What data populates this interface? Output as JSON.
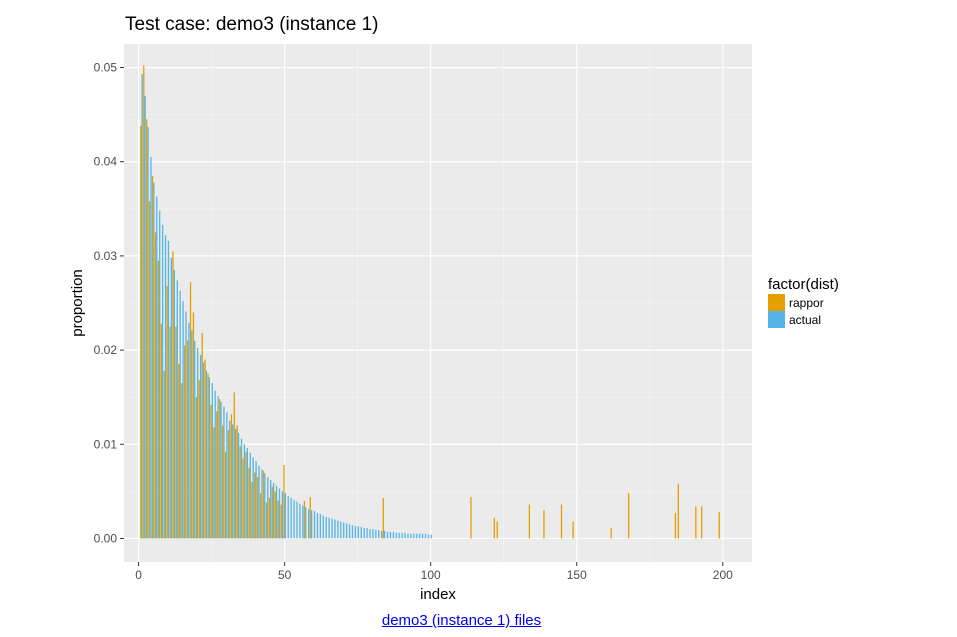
{
  "chart_data": {
    "type": "bar",
    "title": "Test case: demo3 (instance 1)",
    "xlabel": "index",
    "ylabel": "proportion",
    "xlim": [
      -5,
      210
    ],
    "ylim": [
      -0.0025,
      0.0525
    ],
    "x_ticks": [
      0,
      50,
      100,
      150,
      200
    ],
    "x_tick_labels": [
      "0",
      "50",
      "100",
      "150",
      "200"
    ],
    "y_ticks": [
      0.0,
      0.01,
      0.02,
      0.03,
      0.04,
      0.05
    ],
    "y_tick_labels": [
      "0.00",
      "0.01",
      "0.02",
      "0.03",
      "0.04",
      "0.05"
    ],
    "grid": true,
    "legend": {
      "title": "factor(dist)",
      "position": "right"
    },
    "series": [
      {
        "name": "rappor",
        "color": "#E69F00",
        "x": [
          1,
          2,
          3,
          4,
          5,
          6,
          7,
          8,
          9,
          10,
          11,
          12,
          13,
          14,
          15,
          16,
          17,
          18,
          19,
          20,
          21,
          22,
          23,
          24,
          25,
          26,
          27,
          28,
          29,
          30,
          31,
          32,
          33,
          34,
          35,
          36,
          37,
          38,
          39,
          40,
          41,
          42,
          43,
          44,
          45,
          46,
          47,
          48,
          49,
          50,
          57,
          59,
          84,
          114,
          122,
          123,
          134,
          139,
          145,
          149,
          162,
          168,
          184,
          185,
          191,
          193,
          199
        ],
        "values": [
          0.0438,
          0.0502,
          0.0445,
          0.0358,
          0.0385,
          0.0325,
          0.0295,
          0.0228,
          0.0178,
          0.0268,
          0.0225,
          0.0305,
          0.0225,
          0.0185,
          0.0165,
          0.0205,
          0.021,
          0.0272,
          0.024,
          0.015,
          0.0168,
          0.0218,
          0.019,
          0.0175,
          0.0142,
          0.0118,
          0.0135,
          0.0148,
          0.012,
          0.0092,
          0.0115,
          0.0132,
          0.0155,
          0.012,
          0.0098,
          0.0085,
          0.0092,
          0.0075,
          0.006,
          0.007,
          0.0065,
          0.0048,
          0.0072,
          0.0038,
          0.0043,
          0.0055,
          0.005,
          0.004,
          0.0036,
          0.0078,
          0.004,
          0.0044,
          0.0043,
          0.0044,
          0.0022,
          0.0018,
          0.0036,
          0.003,
          0.0036,
          0.0018,
          0.0011,
          0.0048,
          0.0027,
          0.0058,
          0.0034,
          0.0034,
          0.0028
        ]
      },
      {
        "name": "actual",
        "color": "#56B4E9",
        "x": [
          1,
          2,
          3,
          4,
          5,
          6,
          7,
          8,
          9,
          10,
          11,
          12,
          13,
          14,
          15,
          16,
          17,
          18,
          19,
          20,
          21,
          22,
          23,
          24,
          25,
          26,
          27,
          28,
          29,
          30,
          31,
          32,
          33,
          34,
          35,
          36,
          37,
          38,
          39,
          40,
          41,
          42,
          43,
          44,
          45,
          46,
          47,
          48,
          49,
          50,
          51,
          52,
          53,
          54,
          55,
          56,
          57,
          58,
          59,
          60,
          61,
          62,
          63,
          64,
          65,
          66,
          67,
          68,
          69,
          70,
          71,
          72,
          73,
          74,
          75,
          76,
          77,
          78,
          79,
          80,
          81,
          82,
          83,
          84,
          85,
          86,
          87,
          88,
          89,
          90,
          91,
          92,
          93,
          94,
          95,
          96,
          97,
          98,
          99,
          100
        ],
        "values": [
          0.0493,
          0.047,
          0.0437,
          0.0405,
          0.0378,
          0.0363,
          0.0348,
          0.0333,
          0.0322,
          0.0316,
          0.0298,
          0.0285,
          0.0274,
          0.0263,
          0.0252,
          0.0241,
          0.0229,
          0.0221,
          0.021,
          0.0202,
          0.0195,
          0.0187,
          0.0178,
          0.0171,
          0.0165,
          0.0157,
          0.0151,
          0.0145,
          0.014,
          0.0134,
          0.0125,
          0.0121,
          0.0116,
          0.0112,
          0.0106,
          0.01,
          0.0096,
          0.0091,
          0.0086,
          0.0082,
          0.0077,
          0.0073,
          0.0069,
          0.0065,
          0.0062,
          0.0059,
          0.0056,
          0.0053,
          0.005,
          0.0048,
          0.0045,
          0.0043,
          0.0041,
          0.0039,
          0.0037,
          0.0035,
          0.0033,
          0.0031,
          0.003,
          0.0029,
          0.0027,
          0.0026,
          0.0024,
          0.0023,
          0.0022,
          0.0021,
          0.002,
          0.0019,
          0.0018,
          0.0017,
          0.0016,
          0.0015,
          0.0014,
          0.0013,
          0.0013,
          0.0012,
          0.0011,
          0.0011,
          0.001,
          0.001,
          0.0009,
          0.0009,
          0.0008,
          0.0008,
          0.0007,
          0.0007,
          0.0007,
          0.0006,
          0.0006,
          0.0006,
          0.0006,
          0.0005,
          0.0005,
          0.0005,
          0.0005,
          0.0005,
          0.0005,
          0.0005,
          0.0004,
          0.0004
        ]
      }
    ]
  },
  "footer": {
    "files_link": "demo3 (instance 1) files"
  }
}
